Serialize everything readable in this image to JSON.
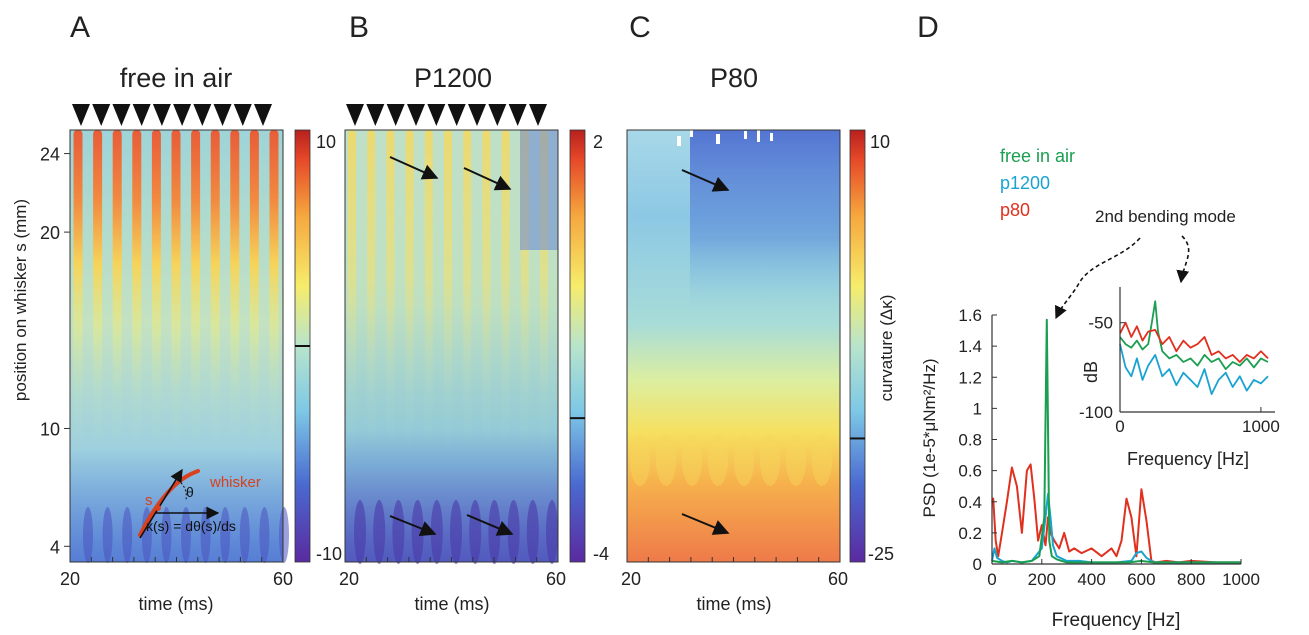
{
  "panels": [
    {
      "letter": "A",
      "title": "free in air",
      "triangle_count": 10,
      "colorbar": {
        "max": "10",
        "min": "-10",
        "zero_fraction": 0.5
      },
      "xticks": [
        "20",
        "60"
      ],
      "xlabel": "time (ms)",
      "yticks": [
        {
          "value": 24,
          "label": "24"
        },
        {
          "value": 20,
          "label": "20"
        },
        {
          "value": 10,
          "label": "10"
        },
        {
          "value": 4,
          "label": "4"
        }
      ],
      "ylabel": "position on whisker s (mm)",
      "inset": {
        "whisker_label": "whisker",
        "s_label": "s",
        "theta_label": "θ",
        "equation": "κ(s) = dθ(s)/ds"
      }
    },
    {
      "letter": "B",
      "title": "P1200",
      "triangle_count": 10,
      "colorbar": {
        "max": "2",
        "min": "-4",
        "zero_fraction": 0.333
      },
      "xticks": [
        "20",
        "60"
      ],
      "xlabel": "time (ms)"
    },
    {
      "letter": "C",
      "title": "P80",
      "colorbar": {
        "max": "10",
        "min": "-25",
        "zero_fraction": 0.286
      },
      "colorbar_label": "curvature (Δκ)",
      "xticks": [
        "20",
        "60"
      ],
      "xlabel": "time (ms)"
    }
  ],
  "panel_d": {
    "letter": "D",
    "legend": [
      {
        "name": "free in air",
        "color": "#1a9e50"
      },
      {
        "name": "p1200",
        "color": "#1aa3d1"
      },
      {
        "name": "p80",
        "color": "#e0301e"
      }
    ],
    "annotation": "2nd bending mode"
  },
  "colors": {
    "free_in_air": "#1a9e50",
    "p1200": "#1aa3d1",
    "p80": "#e0301e"
  },
  "chart_data": [
    {
      "type": "line",
      "title": "",
      "xlabel": "Frequency [Hz]",
      "ylabel": "PSD (1e-5*μNm²/Hz)",
      "xlim": [
        0,
        1000
      ],
      "ylim": [
        0,
        1.6
      ],
      "xticks": [
        "0",
        "200",
        "400",
        "600",
        "800",
        "1000"
      ],
      "yticks": [
        "0",
        "0.2",
        "0.4",
        "0.6",
        "0.8",
        "1",
        "1.2",
        "1.4",
        "1.6"
      ],
      "series": [
        {
          "name": "free in air",
          "color": "#1a9e50",
          "x": [
            0,
            40,
            80,
            120,
            160,
            190,
            210,
            220,
            230,
            240,
            260,
            280,
            300,
            350,
            400,
            450,
            500,
            550,
            600,
            650,
            700,
            750,
            800,
            850,
            900,
            950,
            1000
          ],
          "y": [
            0.02,
            0.01,
            0.02,
            0.01,
            0.02,
            0.05,
            0.3,
            1.57,
            0.15,
            0.05,
            0.03,
            0.02,
            0.01,
            0.01,
            0.01,
            0.01,
            0.01,
            0.01,
            0.02,
            0.01,
            0.01,
            0.01,
            0.01,
            0.01,
            0.01,
            0.01,
            0.01
          ]
        },
        {
          "name": "p1200",
          "color": "#1aa3d1",
          "x": [
            0,
            10,
            20,
            40,
            60,
            80,
            120,
            160,
            200,
            215,
            225,
            235,
            245,
            260,
            300,
            350,
            400,
            450,
            500,
            560,
            580,
            600,
            620,
            650,
            700,
            800,
            900,
            1000
          ],
          "y": [
            0.02,
            0.1,
            0.04,
            0.02,
            0.01,
            0.02,
            0.01,
            0.02,
            0.1,
            0.3,
            0.45,
            0.3,
            0.12,
            0.05,
            0.02,
            0.02,
            0.01,
            0.01,
            0.01,
            0.02,
            0.07,
            0.08,
            0.04,
            0.01,
            0.01,
            0.01,
            0.01,
            0.01
          ]
        },
        {
          "name": "p80",
          "color": "#e0301e",
          "x": [
            0,
            5,
            15,
            25,
            40,
            60,
            80,
            100,
            120,
            140,
            155,
            170,
            185,
            200,
            215,
            225,
            235,
            250,
            270,
            290,
            310,
            330,
            360,
            400,
            440,
            480,
            500,
            520,
            540,
            560,
            580,
            600,
            620,
            640,
            660,
            700,
            750,
            800,
            900,
            1000
          ],
          "y": [
            0.4,
            0.42,
            0.15,
            0.05,
            0.2,
            0.4,
            0.62,
            0.5,
            0.2,
            0.6,
            0.64,
            0.42,
            0.15,
            0.25,
            0.12,
            0.3,
            0.2,
            0.15,
            0.1,
            0.2,
            0.08,
            0.1,
            0.07,
            0.1,
            0.05,
            0.1,
            0.05,
            0.15,
            0.42,
            0.3,
            0.05,
            0.48,
            0.28,
            0.02,
            0.01,
            0.02,
            0.01,
            0.02,
            0.01,
            0.01
          ]
        }
      ]
    },
    {
      "type": "line",
      "title": "",
      "xlabel": "Frequency [Hz]",
      "ylabel": "dB",
      "xlim": [
        0,
        1100
      ],
      "ylim": [
        -100,
        -30
      ],
      "xticks": [
        "0",
        "1000"
      ],
      "yticks": [
        "-50",
        "-100"
      ],
      "series": [
        {
          "name": "free in air",
          "color": "#1a9e50",
          "x": [
            0,
            40,
            80,
            120,
            160,
            200,
            230,
            250,
            270,
            300,
            350,
            400,
            450,
            500,
            550,
            600,
            650,
            700,
            750,
            800,
            850,
            900,
            950,
            1000,
            1050
          ],
          "y": [
            -58,
            -62,
            -64,
            -60,
            -65,
            -62,
            -48,
            -38,
            -55,
            -66,
            -70,
            -68,
            -72,
            -70,
            -74,
            -68,
            -72,
            -70,
            -76,
            -72,
            -74,
            -70,
            -75,
            -70,
            -72
          ]
        },
        {
          "name": "p1200",
          "color": "#1aa3d1",
          "x": [
            0,
            40,
            80,
            120,
            160,
            200,
            250,
            300,
            350,
            400,
            450,
            500,
            550,
            600,
            650,
            700,
            750,
            800,
            850,
            900,
            950,
            1000,
            1050
          ],
          "y": [
            -62,
            -75,
            -80,
            -70,
            -82,
            -74,
            -68,
            -80,
            -76,
            -85,
            -78,
            -82,
            -86,
            -76,
            -90,
            -82,
            -78,
            -86,
            -80,
            -88,
            -82,
            -84,
            -80
          ]
        },
        {
          "name": "p80",
          "color": "#e0301e",
          "x": [
            0,
            40,
            80,
            120,
            160,
            200,
            250,
            300,
            350,
            400,
            450,
            500,
            550,
            600,
            650,
            700,
            750,
            800,
            850,
            900,
            950,
            1000,
            1050
          ],
          "y": [
            -56,
            -50,
            -58,
            -52,
            -60,
            -55,
            -54,
            -62,
            -58,
            -66,
            -60,
            -64,
            -62,
            -58,
            -68,
            -66,
            -70,
            -68,
            -72,
            -68,
            -70,
            -66,
            -70
          ]
        }
      ]
    }
  ]
}
